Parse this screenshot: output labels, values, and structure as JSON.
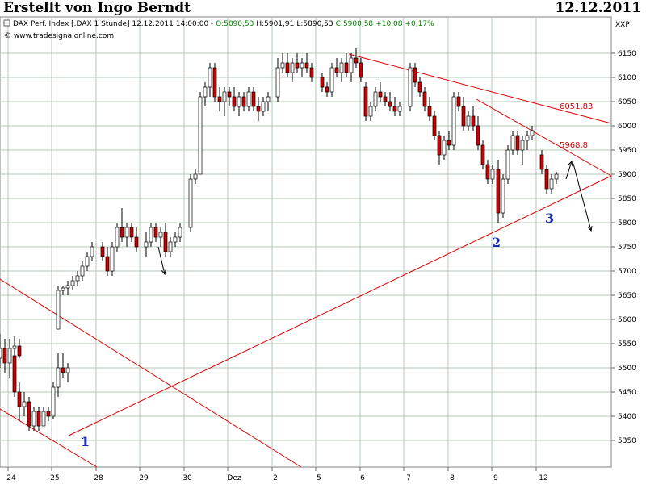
{
  "header": {
    "author": "Erstellt von Ingo Berndt",
    "date": "12.12.2011"
  },
  "info": {
    "prefix": "DAX Perf. Index [.DAX  1 Stunde]  12.12.2011 14:00:00 - ",
    "open": "O:5890,53",
    "high": "H:5901,91",
    "low": "L:5890,53",
    "close": "C:5900,58",
    "change": "+10,08",
    "change_pct": "+0,17%",
    "source": "© www.tradesignalonline.com"
  },
  "colors": {
    "up": "#ffffff",
    "down": "#cc0000",
    "trendline": "#dd0000",
    "grid": "#b4c8b4",
    "annotation_number": "#1a2fb0"
  },
  "chart_data": {
    "type": "candlestick",
    "y_unit": "XXP",
    "ylim": [
      5320,
      6190
    ],
    "grid": true,
    "y_ticks": [
      5350,
      5400,
      5450,
      5500,
      5550,
      5600,
      5650,
      5700,
      5750,
      5800,
      5850,
      5900,
      5950,
      6000,
      6050,
      6100,
      6150
    ],
    "x_ticks": [
      "24",
      "25",
      "28",
      "29",
      "30",
      "Dez",
      "2",
      "5",
      "6",
      "7",
      "8",
      "9",
      "12"
    ],
    "candles": [
      {
        "day": "23",
        "o": 5510,
        "h": 5520,
        "l": 5460,
        "c": 5470
      },
      {
        "day": "23",
        "o": 5470,
        "h": 5530,
        "l": 5450,
        "c": 5520
      },
      {
        "day": "23",
        "o": 5520,
        "h": 5570,
        "l": 5500,
        "c": 5540
      },
      {
        "day": "23",
        "o": 5540,
        "h": 5560,
        "l": 5490,
        "c": 5510
      },
      {
        "day": "23",
        "o": 5510,
        "h": 5560,
        "l": 5480,
        "c": 5540
      },
      {
        "day": "23",
        "o": 5540,
        "h": 5565,
        "l": 5510,
        "c": 5545
      },
      {
        "day": "23",
        "o": 5545,
        "h": 5560,
        "l": 5520,
        "c": 5525
      },
      {
        "day": "24",
        "o": 5525,
        "h": 5540,
        "l": 5440,
        "c": 5450
      },
      {
        "day": "24",
        "o": 5450,
        "h": 5470,
        "l": 5390,
        "c": 5420
      },
      {
        "day": "24",
        "o": 5420,
        "h": 5450,
        "l": 5400,
        "c": 5430
      },
      {
        "day": "24",
        "o": 5430,
        "h": 5440,
        "l": 5370,
        "c": 5380
      },
      {
        "day": "24",
        "o": 5380,
        "h": 5420,
        "l": 5370,
        "c": 5410
      },
      {
        "day": "24",
        "o": 5410,
        "h": 5420,
        "l": 5370,
        "c": 5380
      },
      {
        "day": "24",
        "o": 5380,
        "h": 5420,
        "l": 5380,
        "c": 5410
      },
      {
        "day": "24",
        "o": 5410,
        "h": 5420,
        "l": 5390,
        "c": 5400
      },
      {
        "day": "24",
        "o": 5400,
        "h": 5470,
        "l": 5395,
        "c": 5460
      },
      {
        "day": "24",
        "o": 5460,
        "h": 5530,
        "l": 5440,
        "c": 5500
      },
      {
        "day": "24",
        "o": 5500,
        "h": 5530,
        "l": 5480,
        "c": 5490
      },
      {
        "day": "24",
        "o": 5490,
        "h": 5510,
        "l": 5470,
        "c": 5500
      },
      {
        "day": "25",
        "o": 5580,
        "h": 5670,
        "l": 5580,
        "c": 5660
      },
      {
        "day": "25",
        "o": 5660,
        "h": 5670,
        "l": 5650,
        "c": 5665
      },
      {
        "day": "25",
        "o": 5665,
        "h": 5680,
        "l": 5650,
        "c": 5670
      },
      {
        "day": "25",
        "o": 5670,
        "h": 5690,
        "l": 5660,
        "c": 5680
      },
      {
        "day": "25",
        "o": 5680,
        "h": 5700,
        "l": 5670,
        "c": 5690
      },
      {
        "day": "25",
        "o": 5690,
        "h": 5720,
        "l": 5680,
        "c": 5710
      },
      {
        "day": "25",
        "o": 5710,
        "h": 5740,
        "l": 5700,
        "c": 5730
      },
      {
        "day": "25",
        "o": 5730,
        "h": 5760,
        "l": 5720,
        "c": 5750
      },
      {
        "day": "28",
        "o": 5750,
        "h": 5760,
        "l": 5720,
        "c": 5730
      },
      {
        "day": "28",
        "o": 5730,
        "h": 5750,
        "l": 5690,
        "c": 5700
      },
      {
        "day": "28",
        "o": 5700,
        "h": 5760,
        "l": 5690,
        "c": 5750
      },
      {
        "day": "28",
        "o": 5750,
        "h": 5800,
        "l": 5740,
        "c": 5790
      },
      {
        "day": "28",
        "o": 5790,
        "h": 5830,
        "l": 5760,
        "c": 5770
      },
      {
        "day": "28",
        "o": 5770,
        "h": 5800,
        "l": 5750,
        "c": 5790
      },
      {
        "day": "28",
        "o": 5790,
        "h": 5800,
        "l": 5760,
        "c": 5770
      },
      {
        "day": "28",
        "o": 5770,
        "h": 5790,
        "l": 5740,
        "c": 5750
      },
      {
        "day": "29",
        "o": 5750,
        "h": 5780,
        "l": 5730,
        "c": 5760
      },
      {
        "day": "29",
        "o": 5760,
        "h": 5800,
        "l": 5750,
        "c": 5790
      },
      {
        "day": "29",
        "o": 5790,
        "h": 5800,
        "l": 5760,
        "c": 5770
      },
      {
        "day": "29",
        "o": 5770,
        "h": 5790,
        "l": 5750,
        "c": 5780
      },
      {
        "day": "29",
        "o": 5780,
        "h": 5800,
        "l": 5730,
        "c": 5740
      },
      {
        "day": "29",
        "o": 5740,
        "h": 5770,
        "l": 5730,
        "c": 5760
      },
      {
        "day": "29",
        "o": 5760,
        "h": 5780,
        "l": 5750,
        "c": 5770
      },
      {
        "day": "29",
        "o": 5770,
        "h": 5800,
        "l": 5760,
        "c": 5790
      },
      {
        "day": "30",
        "o": 5790,
        "h": 5900,
        "l": 5780,
        "c": 5890
      },
      {
        "day": "30",
        "o": 5890,
        "h": 5910,
        "l": 5880,
        "c": 5900
      },
      {
        "day": "30",
        "o": 5900,
        "h": 6070,
        "l": 5900,
        "c": 6060
      },
      {
        "day": "30",
        "o": 6060,
        "h": 6090,
        "l": 6040,
        "c": 6080
      },
      {
        "day": "30",
        "o": 6080,
        "h": 6130,
        "l": 6060,
        "c": 6120
      },
      {
        "day": "30",
        "o": 6120,
        "h": 6130,
        "l": 6050,
        "c": 6060
      },
      {
        "day": "30",
        "o": 6060,
        "h": 6080,
        "l": 6030,
        "c": 6050
      },
      {
        "day": "30",
        "o": 6050,
        "h": 6080,
        "l": 6020,
        "c": 6070
      },
      {
        "day": "30",
        "o": 6070,
        "h": 6080,
        "l": 6040,
        "c": 6060
      },
      {
        "day": "Dez",
        "o": 6060,
        "h": 6080,
        "l": 6030,
        "c": 6040
      },
      {
        "day": "Dez",
        "o": 6040,
        "h": 6070,
        "l": 6020,
        "c": 6060
      },
      {
        "day": "Dez",
        "o": 6060,
        "h": 6070,
        "l": 6030,
        "c": 6040
      },
      {
        "day": "Dez",
        "o": 6040,
        "h": 6080,
        "l": 6030,
        "c": 6070
      },
      {
        "day": "Dez",
        "o": 6070,
        "h": 6080,
        "l": 6030,
        "c": 6040
      },
      {
        "day": "Dez",
        "o": 6040,
        "h": 6060,
        "l": 6010,
        "c": 6030
      },
      {
        "day": "Dez",
        "o": 6030,
        "h": 6060,
        "l": 6020,
        "c": 6050
      },
      {
        "day": "Dez",
        "o": 6050,
        "h": 6070,
        "l": 6030,
        "c": 6060
      },
      {
        "day": "2",
        "o": 6060,
        "h": 6140,
        "l": 6050,
        "c": 6120
      },
      {
        "day": "2",
        "o": 6120,
        "h": 6150,
        "l": 6110,
        "c": 6130
      },
      {
        "day": "2",
        "o": 6130,
        "h": 6150,
        "l": 6100,
        "c": 6110
      },
      {
        "day": "2",
        "o": 6110,
        "h": 6140,
        "l": 6090,
        "c": 6130
      },
      {
        "day": "2",
        "o": 6130,
        "h": 6150,
        "l": 6110,
        "c": 6120
      },
      {
        "day": "2",
        "o": 6120,
        "h": 6140,
        "l": 6100,
        "c": 6130
      },
      {
        "day": "2",
        "o": 6130,
        "h": 6150,
        "l": 6110,
        "c": 6120
      },
      {
        "day": "2",
        "o": 6120,
        "h": 6130,
        "l": 6090,
        "c": 6100
      },
      {
        "day": "5",
        "o": 6100,
        "h": 6110,
        "l": 6070,
        "c": 6080
      },
      {
        "day": "5",
        "o": 6080,
        "h": 6090,
        "l": 6060,
        "c": 6070
      },
      {
        "day": "5",
        "o": 6070,
        "h": 6130,
        "l": 6060,
        "c": 6120
      },
      {
        "day": "5",
        "o": 6120,
        "h": 6140,
        "l": 6100,
        "c": 6110
      },
      {
        "day": "5",
        "o": 6110,
        "h": 6140,
        "l": 6090,
        "c": 6130
      },
      {
        "day": "5",
        "o": 6130,
        "h": 6150,
        "l": 6100,
        "c": 6110
      },
      {
        "day": "5",
        "o": 6110,
        "h": 6150,
        "l": 6090,
        "c": 6140
      },
      {
        "day": "5",
        "o": 6140,
        "h": 6160,
        "l": 6120,
        "c": 6130
      },
      {
        "day": "5",
        "o": 6130,
        "h": 6140,
        "l": 6090,
        "c": 6100
      },
      {
        "day": "6",
        "o": 6080,
        "h": 6090,
        "l": 6010,
        "c": 6020
      },
      {
        "day": "6",
        "o": 6020,
        "h": 6050,
        "l": 6010,
        "c": 6040
      },
      {
        "day": "6",
        "o": 6040,
        "h": 6080,
        "l": 6030,
        "c": 6070
      },
      {
        "day": "6",
        "o": 6070,
        "h": 6090,
        "l": 6050,
        "c": 6060
      },
      {
        "day": "6",
        "o": 6060,
        "h": 6070,
        "l": 6040,
        "c": 6050
      },
      {
        "day": "6",
        "o": 6050,
        "h": 6070,
        "l": 6030,
        "c": 6040
      },
      {
        "day": "6",
        "o": 6040,
        "h": 6060,
        "l": 6020,
        "c": 6030
      },
      {
        "day": "6",
        "o": 6030,
        "h": 6050,
        "l": 6020,
        "c": 6040
      },
      {
        "day": "7",
        "o": 6040,
        "h": 6130,
        "l": 6030,
        "c": 6120
      },
      {
        "day": "7",
        "o": 6120,
        "h": 6130,
        "l": 6080,
        "c": 6090
      },
      {
        "day": "7",
        "o": 6090,
        "h": 6100,
        "l": 6060,
        "c": 6070
      },
      {
        "day": "7",
        "o": 6070,
        "h": 6080,
        "l": 6030,
        "c": 6040
      },
      {
        "day": "7",
        "o": 6040,
        "h": 6060,
        "l": 6010,
        "c": 6020
      },
      {
        "day": "7",
        "o": 6020,
        "h": 6030,
        "l": 5970,
        "c": 5980
      },
      {
        "day": "7",
        "o": 5980,
        "h": 5990,
        "l": 5920,
        "c": 5940
      },
      {
        "day": "7",
        "o": 5940,
        "h": 5980,
        "l": 5930,
        "c": 5970
      },
      {
        "day": "7",
        "o": 5970,
        "h": 5990,
        "l": 5950,
        "c": 5960
      },
      {
        "day": "8",
        "o": 5960,
        "h": 6070,
        "l": 5950,
        "c": 6060
      },
      {
        "day": "8",
        "o": 6060,
        "h": 6070,
        "l": 6030,
        "c": 6040
      },
      {
        "day": "8",
        "o": 6040,
        "h": 6060,
        "l": 5990,
        "c": 6000
      },
      {
        "day": "8",
        "o": 6000,
        "h": 6030,
        "l": 5990,
        "c": 6020
      },
      {
        "day": "8",
        "o": 6020,
        "h": 6040,
        "l": 5990,
        "c": 6000
      },
      {
        "day": "8",
        "o": 6000,
        "h": 6020,
        "l": 5950,
        "c": 5960
      },
      {
        "day": "8",
        "o": 5960,
        "h": 5970,
        "l": 5910,
        "c": 5920
      },
      {
        "day": "8",
        "o": 5920,
        "h": 5930,
        "l": 5880,
        "c": 5890
      },
      {
        "day": "8",
        "o": 5890,
        "h": 5920,
        "l": 5880,
        "c": 5910
      },
      {
        "day": "9",
        "o": 5910,
        "h": 5930,
        "l": 5800,
        "c": 5820
      },
      {
        "day": "9",
        "o": 5820,
        "h": 5900,
        "l": 5810,
        "c": 5890
      },
      {
        "day": "9",
        "o": 5890,
        "h": 5960,
        "l": 5880,
        "c": 5950
      },
      {
        "day": "9",
        "o": 5950,
        "h": 5990,
        "l": 5940,
        "c": 5980
      },
      {
        "day": "9",
        "o": 5980,
        "h": 5990,
        "l": 5940,
        "c": 5950
      },
      {
        "day": "9",
        "o": 5950,
        "h": 5980,
        "l": 5920,
        "c": 5970
      },
      {
        "day": "9",
        "o": 5970,
        "h": 5990,
        "l": 5950,
        "c": 5980
      },
      {
        "day": "9",
        "o": 5980,
        "h": 6000,
        "l": 5970,
        "c": 5990
      },
      {
        "day": "12",
        "o": 5940,
        "h": 5950,
        "l": 5900,
        "c": 5910
      },
      {
        "day": "12",
        "o": 5910,
        "h": 5920,
        "l": 5860,
        "c": 5870
      },
      {
        "day": "12",
        "o": 5870,
        "h": 5900,
        "l": 5860,
        "c": 5890
      },
      {
        "day": "12",
        "o": 5890,
        "h": 5905,
        "l": 5880,
        "c": 5900
      }
    ],
    "annotations": [
      {
        "label": "6051,83"
      },
      {
        "label": "5968,8"
      },
      {
        "label": "1"
      },
      {
        "label": "2"
      },
      {
        "label": "3"
      }
    ]
  }
}
